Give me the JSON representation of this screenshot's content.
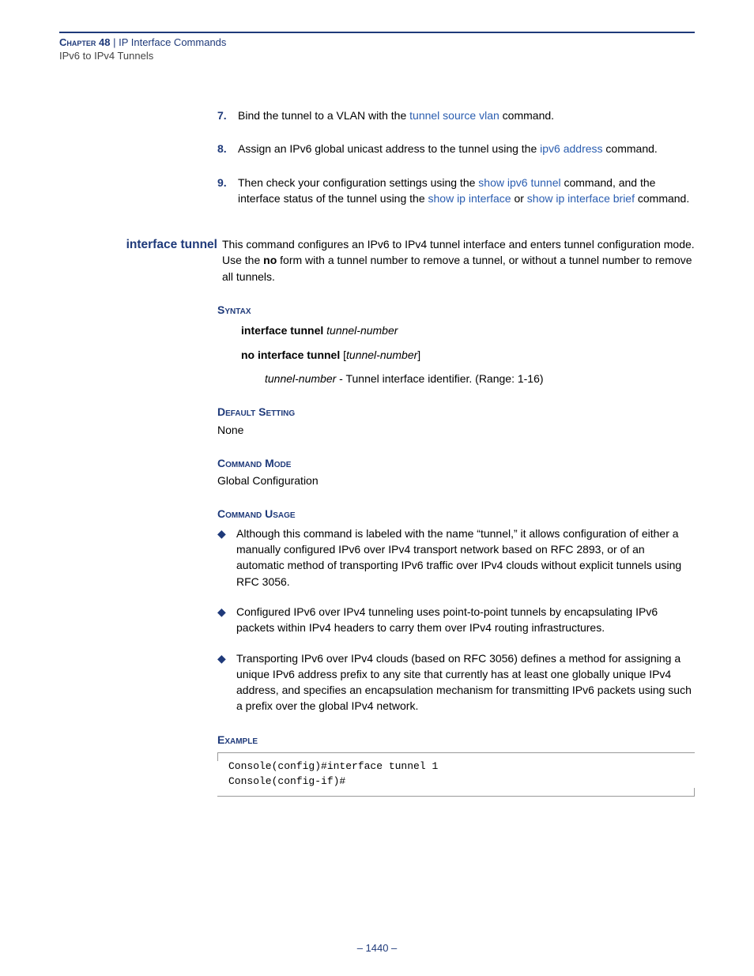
{
  "colors": {
    "accent": "#1f3a7a",
    "link": "#2a5db0",
    "text": "#000000",
    "rule": "#999999",
    "background": "#ffffff"
  },
  "typography": {
    "body_family": "Verdana",
    "body_size_pt": 10.5,
    "mono_family": "Courier New",
    "heading_smallcaps": true
  },
  "header": {
    "chapter_prefix": "Chapter 48",
    "separator": "  |  ",
    "chapter_title": "IP Interface Commands",
    "subtitle": "IPv6 to IPv4 Tunnels"
  },
  "numbered_steps": [
    {
      "num": "7.",
      "parts": [
        {
          "t": "Bind the tunnel to a VLAN with the "
        },
        {
          "t": "tunnel source vlan",
          "link": true
        },
        {
          "t": " command."
        }
      ]
    },
    {
      "num": "8.",
      "parts": [
        {
          "t": "Assign an IPv6 global unicast address to the tunnel using the "
        },
        {
          "t": "ipv6 address",
          "link": true
        },
        {
          "t": " command."
        }
      ]
    },
    {
      "num": "9.",
      "parts": [
        {
          "t": "Then check your configuration settings using the "
        },
        {
          "t": "show ipv6 tunnel",
          "link": true
        },
        {
          "t": " command, and the interface status of the tunnel using the "
        },
        {
          "t": "show ip interface",
          "link": true
        },
        {
          "t": " or "
        },
        {
          "t": "show ip interface brief",
          "link": true
        },
        {
          "t": " command."
        }
      ]
    }
  ],
  "command": {
    "name": "interface tunnel",
    "description_parts": [
      {
        "t": "This command configures an IPv6 to IPv4 tunnel interface and enters tunnel configuration mode. Use the "
      },
      {
        "t": "no",
        "bold": true
      },
      {
        "t": " form with a tunnel number to remove a tunnel, or without a tunnel number to remove all tunnels."
      }
    ],
    "syntax_label": "Syntax",
    "syntax_lines": [
      [
        {
          "t": "interface tunnel ",
          "bold": true
        },
        {
          "t": "tunnel-number",
          "italic": true
        }
      ],
      [
        {
          "t": "no interface tunnel ",
          "bold": true
        },
        {
          "t": "["
        },
        {
          "t": "tunnel-number",
          "italic": true
        },
        {
          "t": "]"
        }
      ]
    ],
    "syntax_param_parts": [
      {
        "t": "tunnel-number",
        "italic": true
      },
      {
        "t": " - Tunnel interface identifier. (Range: 1-16)"
      }
    ],
    "default_label": "Default Setting",
    "default_value": "None",
    "mode_label": "Command Mode",
    "mode_value": "Global Configuration",
    "usage_label": "Command Usage",
    "usage_bullets": [
      "Although this command is labeled with the name “tunnel,” it allows configuration of either a manually configured IPv6 over IPv4 transport network based on RFC 2893, or of an automatic method of transporting IPv6 traffic over IPv4 clouds without explicit tunnels using RFC 3056.",
      "Configured IPv6 over IPv4 tunneling uses point-to-point tunnels by encapsulating IPv6 packets within IPv4 headers to carry them over IPv4 routing infrastructures.",
      "Transporting IPv6 over IPv4 clouds (based on RFC 3056) defines a method for assigning a unique IPv6 address prefix to any site that currently has at least one globally unique IPv4 address, and specifies an encapsulation mechanism for transmitting IPv6 packets using such a prefix over the global IPv4 network."
    ],
    "example_label": "Example",
    "example_code": "Console(config)#interface tunnel 1\nConsole(config-if)#"
  },
  "page_number": "–  1440  –"
}
